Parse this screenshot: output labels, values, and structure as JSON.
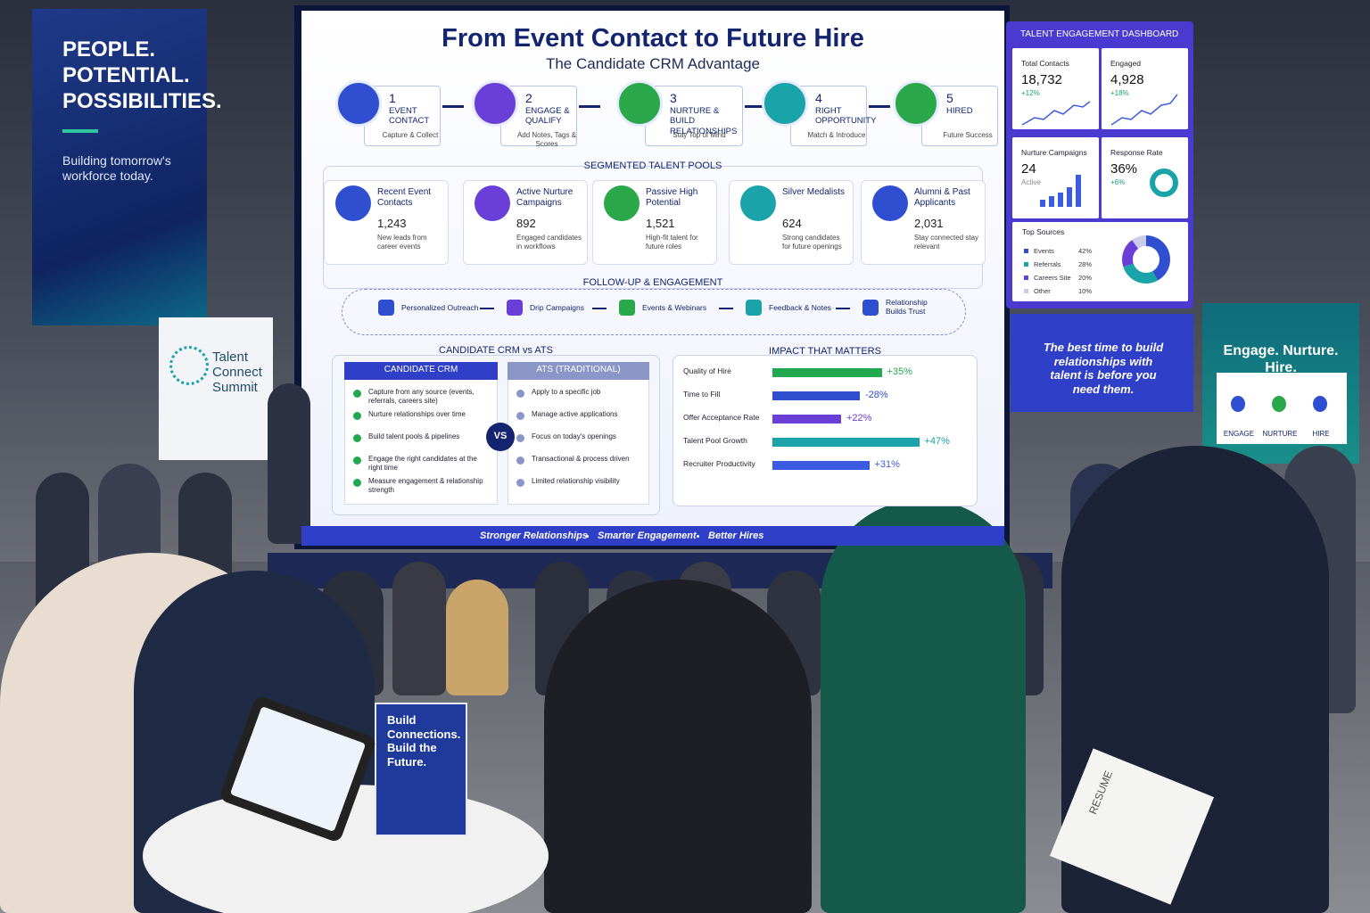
{
  "left_banner": {
    "lines": [
      "PEOPLE.",
      "POTENTIAL.",
      "POSSIBILITIES."
    ],
    "tagline": "Building tomorrow's workforce today."
  },
  "summit_sign": {
    "lines": [
      "Talent",
      "Connect",
      "Summit"
    ]
  },
  "screen": {
    "title": "From Event Contact to Future Hire",
    "subtitle": "The Candidate CRM Advantage",
    "steps": [
      {
        "number": "1",
        "title": "EVENT CONTACT",
        "caption": "Capture & Collect"
      },
      {
        "number": "2",
        "title": "ENGAGE & QUALIFY",
        "caption": "Add Notes, Tags & Scores"
      },
      {
        "number": "3",
        "title": "NURTURE & BUILD RELATIONSHIPS",
        "caption": "Stay Top of Mind"
      },
      {
        "number": "4",
        "title": "RIGHT OPPORTUNITY",
        "caption": "Match & Introduce"
      },
      {
        "number": "5",
        "title": "HIRED",
        "caption": "Future Success"
      }
    ],
    "pools_heading": "SEGMENTED TALENT POOLS",
    "pools": [
      {
        "title": "Recent Event Contacts",
        "count": "1,243",
        "description": "New leads from career events"
      },
      {
        "title": "Active Nurture Campaigns",
        "count": "892",
        "description": "Engaged candidates in workflows"
      },
      {
        "title": "Passive High Potential",
        "count": "1,521",
        "description": "High-fit talent for future roles"
      },
      {
        "title": "Silver Medalists",
        "count": "624",
        "description": "Strong candidates for future openings"
      },
      {
        "title": "Alumni & Past Applicants",
        "count": "2,031",
        "description": "Stay connected stay relevant"
      }
    ],
    "followup_heading": "FOLLOW-UP & ENGAGEMENT",
    "followup": [
      "Personalized Outreach",
      "Drip Campaigns",
      "Events & Webinars",
      "Feedback & Notes",
      "Relationship Builds Trust"
    ],
    "comparison_heading": "CANDIDATE CRM vs ATS",
    "crm": {
      "heading": "CANDIDATE CRM",
      "items": [
        "Capture from any source (events, referrals, careers site)",
        "Nurture relationships over time",
        "Build talent pools & pipelines",
        "Engage the right candidates at the right time",
        "Measure engagement & relationship strength"
      ]
    },
    "ats": {
      "heading": "ATS (TRADITIONAL)",
      "items": [
        "Apply to a specific job",
        "Manage active applications",
        "Focus on today's openings",
        "Transactional & process driven",
        "Limited relationship visibility"
      ]
    },
    "vs": "VS",
    "impact_heading": "IMPACT THAT MATTERS",
    "impact": {
      "categories": [
        "Quality of Hire",
        "Time to Fill",
        "Offer Acceptance Rate",
        "Talent Pool Growth",
        "Recruiter Productivity"
      ],
      "values": [
        35,
        -28,
        22,
        47,
        31
      ],
      "value_labels": [
        "+35%",
        "-28%",
        "+22%",
        "+47%",
        "+31%"
      ],
      "colors": [
        "#22a94f",
        "#2f4fd0",
        "#6a3fd8",
        "#1aa3a8",
        "#3d5be0"
      ]
    },
    "footer": [
      "Stronger Relationships",
      "Smarter Engagement",
      "Better Hires"
    ]
  },
  "dashboard": {
    "title": "TALENT ENGAGEMENT DASHBOARD",
    "kpis": [
      {
        "label": "Total Contacts",
        "value": "18,732",
        "change": "+12%"
      },
      {
        "label": "Engaged",
        "value": "4,928",
        "change": "+18%"
      },
      {
        "label": "Nurture Campaigns",
        "value": "24",
        "change": "Active"
      },
      {
        "label": "Response Rate",
        "value": "36%",
        "change": "+6%"
      }
    ],
    "sources": {
      "title": "Top Sources",
      "categories": [
        "Events",
        "Referrals",
        "Careers Site",
        "Other"
      ],
      "values": [
        42,
        28,
        20,
        10
      ],
      "value_labels": [
        "42%",
        "28%",
        "20%",
        "10%"
      ],
      "colors": [
        "#2f4fd0",
        "#1aa3a8",
        "#6a3fd8",
        "#c9cde8"
      ]
    }
  },
  "quote": "The best time to build relationships with talent is before you need them.",
  "right_banner": {
    "title": "Engage. Nurture. Hire.",
    "labels": [
      "ENGAGE",
      "NURTURE",
      "HIRE"
    ]
  },
  "table_sign": "Build Connections. Build the Future.",
  "resume": "RESUME"
}
